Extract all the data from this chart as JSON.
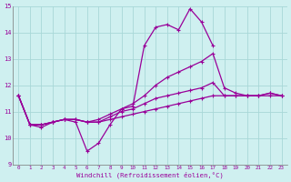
{
  "bg_color": "#cff0f0",
  "grid_color": "#a8d8d8",
  "line_color": "#990099",
  "xlabel": "Windchill (Refroidissement éolien,°C)",
  "ylim": [
    9,
    15
  ],
  "xlim": [
    -0.5,
    23.5
  ],
  "yticks": [
    9,
    10,
    11,
    12,
    13,
    14,
    15
  ],
  "xticks": [
    0,
    1,
    2,
    3,
    4,
    5,
    6,
    7,
    8,
    9,
    10,
    11,
    12,
    13,
    14,
    15,
    16,
    17,
    18,
    19,
    20,
    21,
    22,
    23
  ],
  "line1_x": [
    0,
    1,
    2,
    3,
    4,
    5,
    6,
    7,
    8,
    9,
    10,
    11,
    12,
    13,
    14,
    15,
    16,
    17
  ],
  "line1_y": [
    11.6,
    10.5,
    10.4,
    10.6,
    10.7,
    10.6,
    9.5,
    9.8,
    10.5,
    11.1,
    11.2,
    13.5,
    14.2,
    14.3,
    14.1,
    14.9,
    14.4,
    13.5
  ],
  "line2_x": [
    0,
    1,
    2,
    3,
    4,
    5,
    6,
    7,
    8,
    9,
    10,
    11,
    12,
    13,
    14,
    15,
    16,
    17,
    18,
    19,
    20,
    21,
    22,
    23
  ],
  "line2_y": [
    11.6,
    10.5,
    10.5,
    10.6,
    10.7,
    10.7,
    10.6,
    10.7,
    10.9,
    11.1,
    11.3,
    11.6,
    12.0,
    12.3,
    12.5,
    12.7,
    12.9,
    13.2,
    11.9,
    11.7,
    11.6,
    11.6,
    11.7,
    11.6
  ],
  "line3_x": [
    0,
    1,
    2,
    3,
    4,
    5,
    6,
    7,
    8,
    9,
    10,
    11,
    12,
    13,
    14,
    15,
    16,
    17,
    18,
    19,
    20,
    21,
    22,
    23
  ],
  "line3_y": [
    11.6,
    10.5,
    10.5,
    10.6,
    10.7,
    10.7,
    10.6,
    10.6,
    10.8,
    11.0,
    11.1,
    11.3,
    11.5,
    11.6,
    11.7,
    11.8,
    11.9,
    12.1,
    11.6,
    11.6,
    11.6,
    11.6,
    11.6,
    11.6
  ],
  "line4_x": [
    0,
    1,
    2,
    3,
    4,
    5,
    6,
    7,
    8,
    9,
    10,
    11,
    12,
    13,
    14,
    15,
    16,
    17,
    18,
    19,
    20,
    21,
    22,
    23
  ],
  "line4_y": [
    11.6,
    10.5,
    10.5,
    10.6,
    10.7,
    10.7,
    10.6,
    10.6,
    10.7,
    10.8,
    10.9,
    11.0,
    11.1,
    11.2,
    11.3,
    11.4,
    11.5,
    11.6,
    11.6,
    11.6,
    11.6,
    11.6,
    11.7,
    11.6
  ]
}
